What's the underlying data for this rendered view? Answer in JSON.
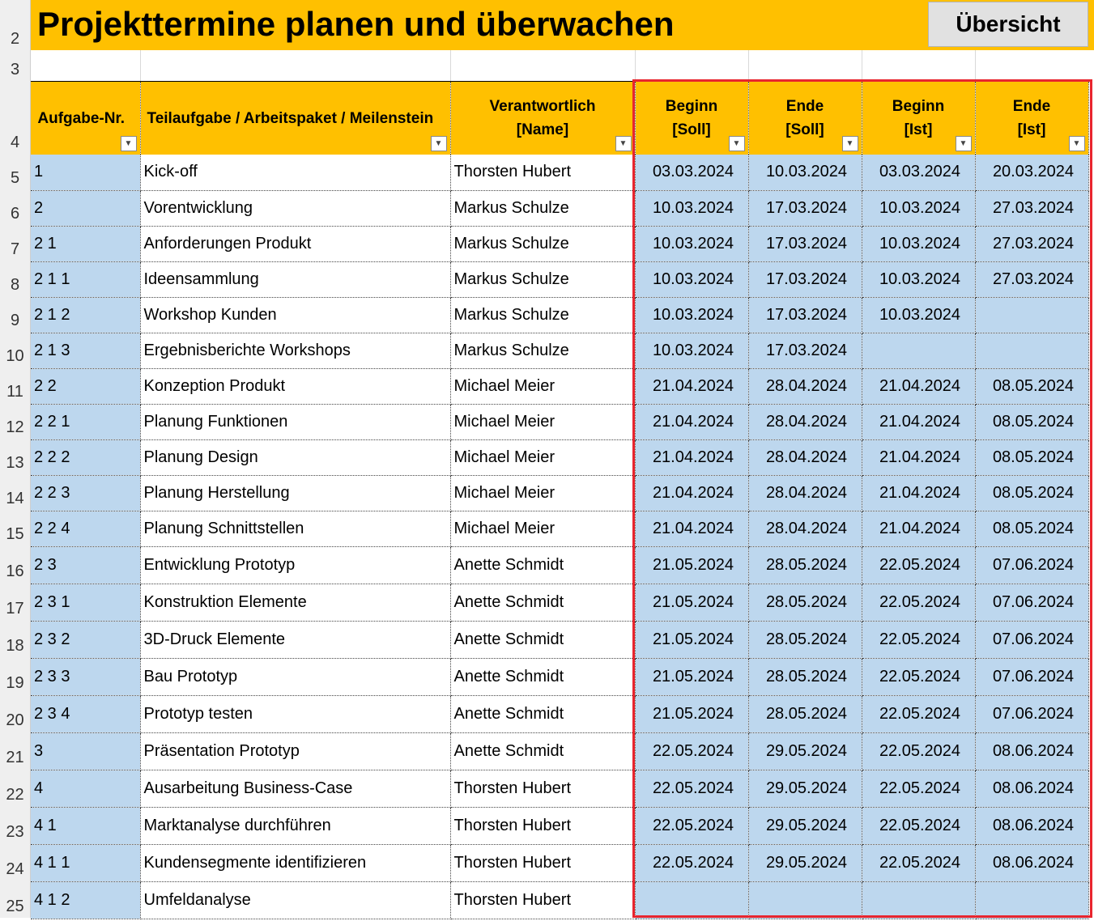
{
  "title": "Projekttermine planen und überwachen",
  "button_label": "Übersicht",
  "colors": {
    "header": "#ffc000",
    "cell_blue": "#bdd7ee",
    "highlight": "#e8252e"
  },
  "headers": {
    "nr": "Aufgabe-Nr.",
    "task": "Teilaufgabe / Arbeitspaket / Meilenstein",
    "resp_1": "Verantwortlich",
    "resp_2": "[Name]",
    "begin_soll_1": "Beginn",
    "begin_soll_2": "[Soll]",
    "end_soll_1": "Ende",
    "end_soll_2": "[Soll]",
    "begin_ist_1": "Beginn",
    "begin_ist_2": "[Ist]",
    "end_ist_1": "Ende",
    "end_ist_2": "[Ist]"
  },
  "header_row_numbers": [
    "2",
    "3",
    "4"
  ],
  "rows": [
    {
      "row": "5",
      "nr": "1",
      "task": "Kick-off",
      "resp": "Thorsten Hubert",
      "begin_soll": "03.03.2024",
      "end_soll": "10.03.2024",
      "begin_ist": "03.03.2024",
      "end_ist": "20.03.2024"
    },
    {
      "row": "6",
      "nr": "2",
      "task": "Vorentwicklung",
      "resp": "Markus Schulze",
      "begin_soll": "10.03.2024",
      "end_soll": "17.03.2024",
      "begin_ist": "10.03.2024",
      "end_ist": "27.03.2024"
    },
    {
      "row": "7",
      "nr": "2 1",
      "task": "Anforderungen Produkt",
      "resp": "Markus Schulze",
      "begin_soll": "10.03.2024",
      "end_soll": "17.03.2024",
      "begin_ist": "10.03.2024",
      "end_ist": "27.03.2024"
    },
    {
      "row": "8",
      "nr": "2 1 1",
      "task": "Ideensammlung",
      "resp": "Markus Schulze",
      "begin_soll": "10.03.2024",
      "end_soll": "17.03.2024",
      "begin_ist": "10.03.2024",
      "end_ist": "27.03.2024"
    },
    {
      "row": "9",
      "nr": "2 1 2",
      "task": "Workshop Kunden",
      "resp": "Markus Schulze",
      "begin_soll": "10.03.2024",
      "end_soll": "17.03.2024",
      "begin_ist": "10.03.2024",
      "end_ist": ""
    },
    {
      "row": "10",
      "nr": "2 1 3",
      "task": "Ergebnisberichte Workshops",
      "resp": "Markus Schulze",
      "begin_soll": "10.03.2024",
      "end_soll": "17.03.2024",
      "begin_ist": "",
      "end_ist": ""
    },
    {
      "row": "11",
      "nr": "2 2",
      "task": "Konzeption Produkt",
      "resp": "Michael Meier",
      "begin_soll": "21.04.2024",
      "end_soll": "28.04.2024",
      "begin_ist": "21.04.2024",
      "end_ist": "08.05.2024"
    },
    {
      "row": "12",
      "nr": "2 2 1",
      "task": "Planung Funktionen",
      "resp": "Michael Meier",
      "begin_soll": "21.04.2024",
      "end_soll": "28.04.2024",
      "begin_ist": "21.04.2024",
      "end_ist": "08.05.2024"
    },
    {
      "row": "13",
      "nr": "2 2 2",
      "task": "Planung Design",
      "resp": "Michael Meier",
      "begin_soll": "21.04.2024",
      "end_soll": "28.04.2024",
      "begin_ist": "21.04.2024",
      "end_ist": "08.05.2024"
    },
    {
      "row": "14",
      "nr": "2 2 3",
      "task": "Planung Herstellung",
      "resp": "Michael Meier",
      "begin_soll": "21.04.2024",
      "end_soll": "28.04.2024",
      "begin_ist": "21.04.2024",
      "end_ist": "08.05.2024"
    },
    {
      "row": "15",
      "nr": "2 2 4",
      "task": "Planung Schnittstellen",
      "resp": "Michael Meier",
      "begin_soll": "21.04.2024",
      "end_soll": "28.04.2024",
      "begin_ist": "21.04.2024",
      "end_ist": "08.05.2024"
    },
    {
      "row": "16",
      "nr": "2 3",
      "task": "Entwicklung Prototyp",
      "resp": "Anette Schmidt",
      "begin_soll": "21.05.2024",
      "end_soll": "28.05.2024",
      "begin_ist": "22.05.2024",
      "end_ist": "07.06.2024"
    },
    {
      "row": "17",
      "nr": "2 3 1",
      "task": "Konstruktion Elemente",
      "resp": "Anette Schmidt",
      "begin_soll": "21.05.2024",
      "end_soll": "28.05.2024",
      "begin_ist": "22.05.2024",
      "end_ist": "07.06.2024"
    },
    {
      "row": "18",
      "nr": "2 3 2",
      "task": "3D-Druck Elemente",
      "resp": "Anette Schmidt",
      "begin_soll": "21.05.2024",
      "end_soll": "28.05.2024",
      "begin_ist": "22.05.2024",
      "end_ist": "07.06.2024"
    },
    {
      "row": "19",
      "nr": "2 3 3",
      "task": "Bau Prototyp",
      "resp": "Anette Schmidt",
      "begin_soll": "21.05.2024",
      "end_soll": "28.05.2024",
      "begin_ist": "22.05.2024",
      "end_ist": "07.06.2024"
    },
    {
      "row": "20",
      "nr": "2 3 4",
      "task": "Prototyp testen",
      "resp": "Anette Schmidt",
      "begin_soll": "21.05.2024",
      "end_soll": "28.05.2024",
      "begin_ist": "22.05.2024",
      "end_ist": "07.06.2024"
    },
    {
      "row": "21",
      "nr": "3",
      "task": "Präsentation Prototyp",
      "resp": "Anette Schmidt",
      "begin_soll": "22.05.2024",
      "end_soll": "29.05.2024",
      "begin_ist": "22.05.2024",
      "end_ist": "08.06.2024"
    },
    {
      "row": "22",
      "nr": "4",
      "task": "Ausarbeitung Business-Case",
      "resp": "Thorsten Hubert",
      "begin_soll": "22.05.2024",
      "end_soll": "29.05.2024",
      "begin_ist": "22.05.2024",
      "end_ist": "08.06.2024"
    },
    {
      "row": "23",
      "nr": "4 1",
      "task": "Marktanalyse durchführen",
      "resp": "Thorsten Hubert",
      "begin_soll": "22.05.2024",
      "end_soll": "29.05.2024",
      "begin_ist": "22.05.2024",
      "end_ist": "08.06.2024"
    },
    {
      "row": "24",
      "nr": "4 1 1",
      "task": "Kundensegmente identifizieren",
      "resp": "Thorsten Hubert",
      "begin_soll": "22.05.2024",
      "end_soll": "29.05.2024",
      "begin_ist": "22.05.2024",
      "end_ist": "08.06.2024"
    },
    {
      "row": "25",
      "nr": "4 1 2",
      "task": "Umfeldanalyse",
      "resp": "Thorsten Hubert",
      "begin_soll": "",
      "end_soll": "",
      "begin_ist": "",
      "end_ist": ""
    }
  ]
}
